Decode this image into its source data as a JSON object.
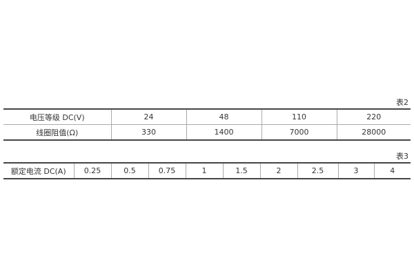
{
  "table2": {
    "caption": "表2",
    "rows": [
      [
        "电压等级 DC(V)",
        "24",
        "48",
        "110",
        "220"
      ],
      [
        "线圈阻值(Ω)",
        "330",
        "1400",
        "7000",
        "28000"
      ]
    ]
  },
  "table3": {
    "caption": "表3",
    "row": [
      "额定电流 DC(A)",
      "0.25",
      "0.5",
      "0.75",
      "1",
      "1.5",
      "2",
      "2.5",
      "3",
      "4"
    ]
  }
}
